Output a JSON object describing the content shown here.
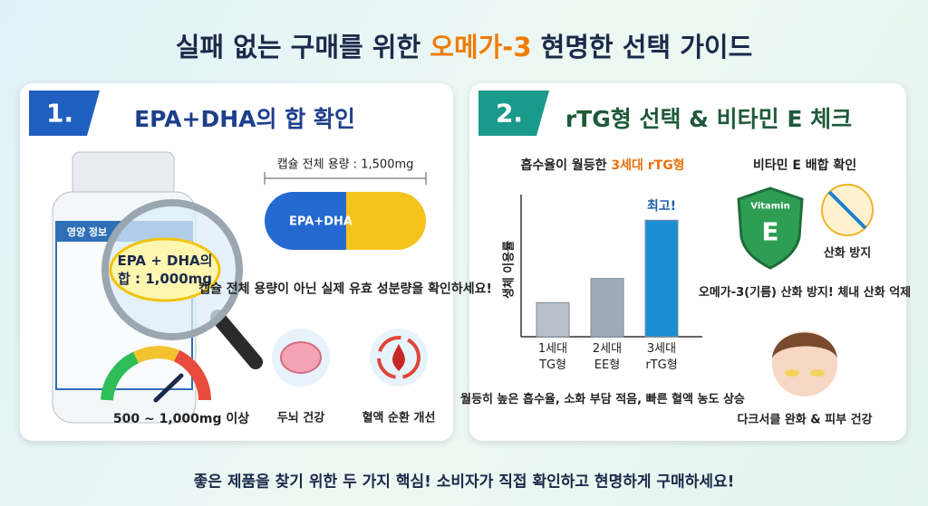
{
  "title": {
    "before": "실패 없는 구매를 위한 ",
    "highlight": "오메가-3",
    "after": " 현명한 선택 가이드"
  },
  "section1": {
    "badge": "1.",
    "heading": "EPA+DHA의 합 확인",
    "bottle_label": "영양 정보",
    "magnifier_text": "EPA + DHA의\n합 : 1,000mg",
    "capsule_total": "캡슐 전체 용량 : 1,500mg",
    "capsule_label": "EPA+DHA",
    "note": "캡슐 전체 용량이 아닌\n실제 유효 성분량을 확인하세요!",
    "gauge_label": "500 ~ 1,000mg 이상",
    "benefits": [
      "두뇌 건강",
      "혈액 순환 개선"
    ]
  },
  "section2": {
    "badge": "2.",
    "heading": "rTG형 선택 & 비타민 E 체크",
    "chart_title": {
      "before": "흡수율이 월등한 ",
      "highlight": "3세대 rTG형"
    },
    "chart_data": {
      "type": "bar",
      "y_label": "생체 이용률",
      "categories": [
        "1세대\nTG형",
        "2세대\nEE형",
        "3세대\nrTG형"
      ],
      "values": [
        24,
        41,
        82
      ],
      "ylim": [
        0,
        100
      ],
      "colors": [
        "#b8c1cb",
        "#a0abb7",
        "#1a8fd6"
      ],
      "annotation": "최고!"
    },
    "chart_note": "월등히 높은 흡수율, 소화 부담 적음,\n빠른 혈액 농도 상승",
    "vitamin_title": "비타민 E 배합 확인",
    "shield_top": "Vitamin",
    "shield_letter": "E",
    "antioxidant": "산화 방지",
    "antioxidant_note": "오메가-3(기름) 산화 방지!\n체내 산화 억제",
    "skin_note": "다크서클 완화 & 피부 건강"
  },
  "footer": "좋은 제품을 찾기 위한 두 가지 핵심! 소비자가 직접 확인하고 현명하게 구매하세요!"
}
